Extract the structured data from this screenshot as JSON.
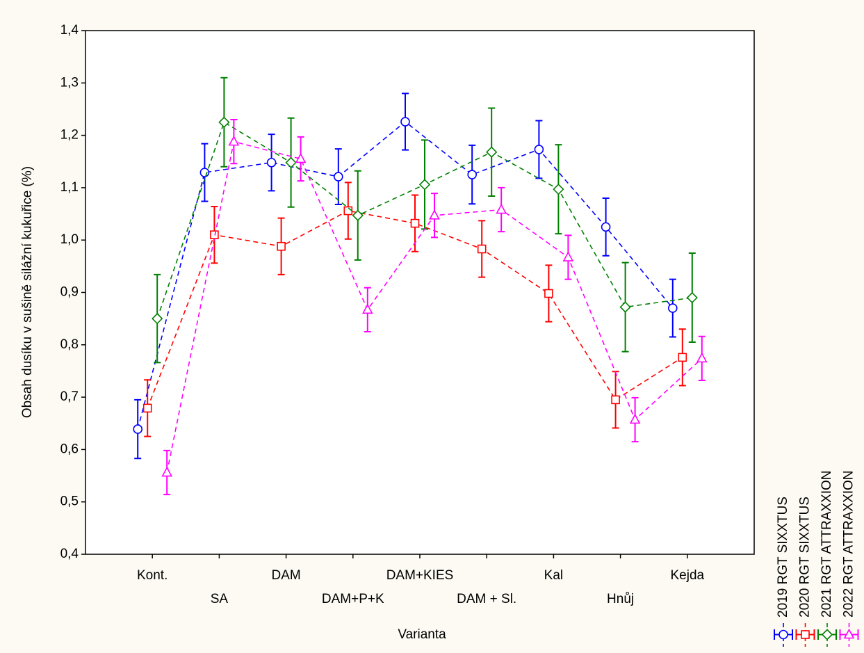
{
  "chart_data": {
    "type": "line",
    "y_label": "Obsah dusíku v sušině silážní kukuřice (%)",
    "x_label": "Varianta",
    "categories": [
      "Kont.",
      "SA",
      "DAM",
      "DAM+P+K",
      "DAM+KIES",
      "DAM + Sl.",
      "Kal",
      "Hnůj",
      "Kejda"
    ],
    "series": [
      {
        "name": "2019 RGT SIXXTUS",
        "color": "#0000ff",
        "marker": "circle",
        "values": [
          0.639,
          1.129,
          1.148,
          1.121,
          1.226,
          1.125,
          1.173,
          1.025,
          0.87
        ],
        "errors": [
          0.056,
          0.055,
          0.054,
          0.053,
          0.054,
          0.056,
          0.055,
          0.055,
          0.055
        ]
      },
      {
        "name": "2020 RGT SIXXTUS",
        "color": "#ff0000",
        "marker": "square",
        "values": [
          0.679,
          1.01,
          0.988,
          1.056,
          1.032,
          0.983,
          0.898,
          0.695,
          0.776
        ],
        "errors": [
          0.054,
          0.054,
          0.054,
          0.054,
          0.054,
          0.054,
          0.054,
          0.054,
          0.054
        ]
      },
      {
        "name": "2021 RGT ATTRAXXION",
        "color": "#008000",
        "marker": "diamond",
        "values": [
          0.85,
          1.225,
          1.148,
          1.047,
          1.106,
          1.168,
          1.097,
          0.872,
          0.89
        ],
        "errors": [
          0.084,
          0.085,
          0.085,
          0.085,
          0.085,
          0.084,
          0.085,
          0.085,
          0.085
        ]
      },
      {
        "name": "2022 RGT ATTRAXXION",
        "color": "#ff00ff",
        "marker": "triangle",
        "values": [
          0.556,
          1.188,
          1.155,
          0.867,
          1.047,
          1.058,
          0.967,
          0.657,
          0.774
        ],
        "errors": [
          0.042,
          0.042,
          0.042,
          0.042,
          0.042,
          0.042,
          0.042,
          0.042,
          0.042
        ]
      }
    ],
    "ylim": [
      0.4,
      1.4
    ],
    "yticks": [
      {
        "value": 0.4,
        "label": "0,4"
      },
      {
        "value": 0.5,
        "label": "0,5"
      },
      {
        "value": 0.6,
        "label": "0,6"
      },
      {
        "value": 0.7,
        "label": "0,7"
      },
      {
        "value": 0.8,
        "label": "0,8"
      },
      {
        "value": 0.9,
        "label": "0,9"
      },
      {
        "value": 1.0,
        "label": "1,0"
      },
      {
        "value": 1.1,
        "label": "1,1"
      },
      {
        "value": 1.2,
        "label": "1,2"
      },
      {
        "value": 1.3,
        "label": "1,3"
      },
      {
        "value": 1.4,
        "label": "1,4"
      }
    ],
    "grid": false
  }
}
